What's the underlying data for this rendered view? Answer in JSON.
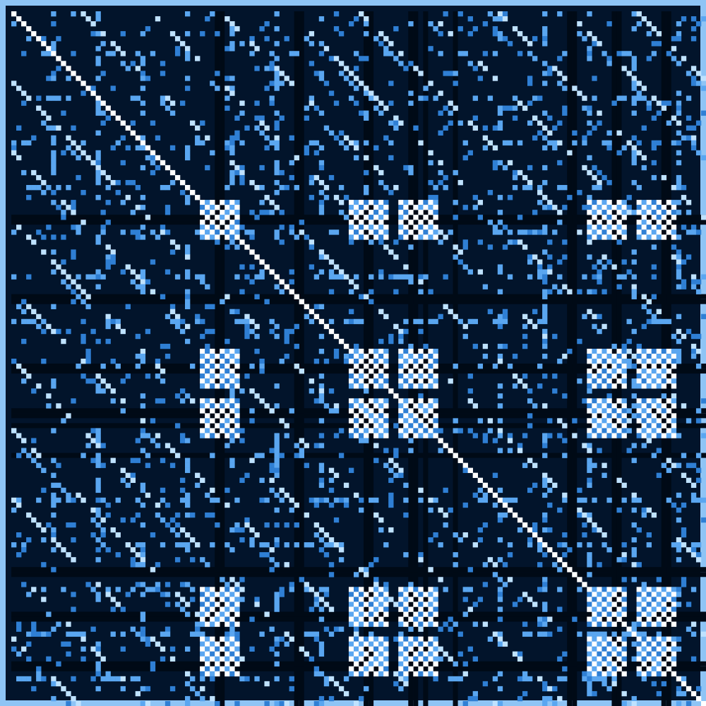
{
  "colors": {
    "frame": "#8ec4f5",
    "background": "#02142b",
    "row_block_dark": "#000a16",
    "empty": "#061c38",
    "weak": "#2f7fd4",
    "medium": "#5aa6f0",
    "strong": "#bfe2ff",
    "diagonal": "#ffffff"
  },
  "matrix": {
    "type": "recurrence-plot",
    "size": 140,
    "dark_bands": [
      41,
      42,
      57,
      58,
      71,
      72,
      80,
      81,
      83,
      89,
      112,
      113,
      121,
      122,
      131,
      132
    ],
    "checker_blocks": [
      [
        38,
        45,
        38,
        45
      ],
      [
        68,
        75,
        38,
        45
      ],
      [
        78,
        85,
        38,
        45
      ],
      [
        116,
        123,
        38,
        45
      ],
      [
        126,
        133,
        38,
        45
      ],
      [
        38,
        45,
        68,
        75
      ],
      [
        68,
        75,
        68,
        75
      ],
      [
        78,
        85,
        68,
        75
      ],
      [
        116,
        123,
        68,
        75
      ],
      [
        126,
        133,
        68,
        75
      ],
      [
        38,
        45,
        78,
        85
      ],
      [
        68,
        75,
        78,
        85
      ],
      [
        78,
        85,
        78,
        85
      ],
      [
        116,
        123,
        78,
        85
      ],
      [
        126,
        133,
        78,
        85
      ],
      [
        38,
        45,
        116,
        123
      ],
      [
        68,
        75,
        116,
        123
      ],
      [
        78,
        85,
        116,
        123
      ],
      [
        116,
        123,
        116,
        123
      ],
      [
        126,
        133,
        116,
        123
      ],
      [
        38,
        45,
        126,
        133
      ],
      [
        68,
        75,
        126,
        133
      ],
      [
        78,
        85,
        126,
        133
      ],
      [
        116,
        123,
        126,
        133
      ],
      [
        126,
        133,
        126,
        133
      ]
    ]
  }
}
